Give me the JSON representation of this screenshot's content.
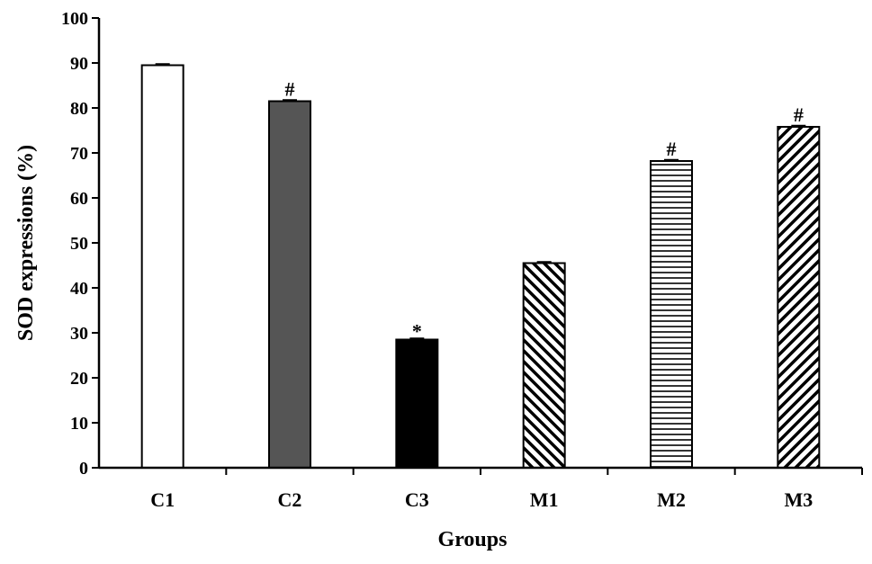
{
  "chart_data": {
    "type": "bar",
    "categories": [
      "C1",
      "C2",
      "C3",
      "M1",
      "M2",
      "M3"
    ],
    "values": [
      89.5,
      81.5,
      28.5,
      45.5,
      68.2,
      75.8
    ],
    "annotations": [
      "",
      "#",
      "*",
      "",
      "#",
      "#"
    ],
    "xlabel": "Groups",
    "ylabel": "SOD expressions (%)",
    "ylim": [
      0,
      100
    ],
    "yticks": [
      0,
      10,
      20,
      30,
      40,
      50,
      60,
      70,
      80,
      90,
      100
    ],
    "legend": "none",
    "grid": false,
    "bar_styles": [
      {
        "fill": "#ffffff",
        "pattern": "none"
      },
      {
        "fill": "#555555",
        "pattern": "none"
      },
      {
        "fill": "#000000",
        "pattern": "none"
      },
      {
        "fill": "#ffffff",
        "pattern": "diagonal-down"
      },
      {
        "fill": "#ffffff",
        "pattern": "horizontal"
      },
      {
        "fill": "#ffffff",
        "pattern": "diagonal-up"
      }
    ]
  }
}
